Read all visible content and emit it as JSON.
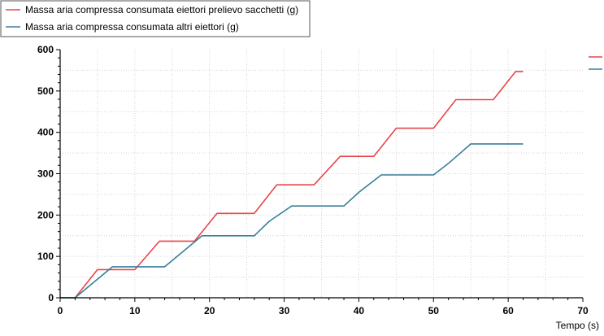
{
  "chart_data": {
    "type": "line",
    "xlabel": "Tempo (s)",
    "ylabel": "",
    "title": "",
    "xlim": [
      0,
      70
    ],
    "ylim": [
      0,
      600
    ],
    "xticks": [
      0,
      10,
      20,
      30,
      40,
      50,
      60,
      70
    ],
    "yticks": [
      0,
      100,
      200,
      300,
      400,
      500,
      600
    ],
    "grid": true,
    "legend_position": "top-left",
    "series": [
      {
        "name": "Massa aria compressa consumata eiettori prelievo sacchetti (g)",
        "color": "#e8454a",
        "x": [
          0,
          2,
          5,
          10,
          13.3,
          18,
          21,
          26,
          29,
          34,
          37.5,
          42,
          45,
          50,
          53,
          58,
          61,
          62
        ],
        "y": [
          0,
          0,
          68,
          68,
          137,
          137,
          204,
          204,
          273,
          273,
          342,
          342,
          410,
          410,
          479,
          479,
          547,
          547
        ]
      },
      {
        "name": "Massa aria compressa consumata altri eiettori (g)",
        "color": "#3a7f9a",
        "x": [
          0,
          2,
          7,
          14,
          16,
          19,
          26,
          28,
          31,
          38,
          40,
          43,
          50,
          52,
          55,
          62
        ],
        "y": [
          0,
          0,
          75,
          75,
          105,
          150,
          150,
          185,
          222,
          222,
          255,
          297,
          297,
          325,
          372,
          372
        ]
      }
    ]
  }
}
